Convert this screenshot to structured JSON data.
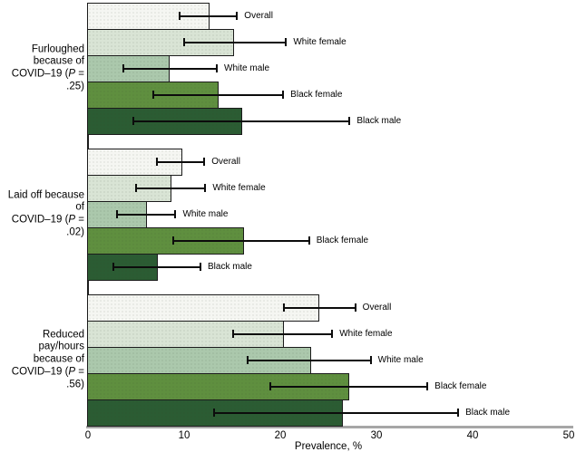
{
  "chart_data": {
    "type": "bar",
    "orientation": "horizontal",
    "title": "",
    "xlabel": "Prevalence, %",
    "ylabel": "",
    "xlim": [
      0,
      50
    ],
    "x_ticks": [
      0,
      10,
      20,
      30,
      40,
      50
    ],
    "grid": false,
    "legend": "none (categories labeled at error-bar ends)",
    "error_bars": "95% CI whiskers with end caps",
    "palette": {
      "Overall": "#f5f6f2",
      "White female": "#d9e4d5",
      "White male": "#abc8ac",
      "Black female": "#5f8f3f",
      "Black male": "#2b5c33"
    },
    "bar_border_color": "#1b1b1b",
    "axis_line_color": "#a6a6a6",
    "groups": [
      {
        "label_lines": [
          "Furloughed",
          "because of",
          "COVID–19 (P = .25)"
        ],
        "p_value": ".25",
        "bars": [
          {
            "category": "Overall",
            "value": 12.5,
            "ci_low": 9.5,
            "ci_high": 15.5
          },
          {
            "category": "White female",
            "value": 15.1,
            "ci_low": 10.0,
            "ci_high": 20.6
          },
          {
            "category": "White male",
            "value": 8.4,
            "ci_low": 3.7,
            "ci_high": 13.4
          },
          {
            "category": "Black female",
            "value": 13.5,
            "ci_low": 6.8,
            "ci_high": 20.3
          },
          {
            "category": "Black male",
            "value": 15.9,
            "ci_low": 4.7,
            "ci_high": 27.2
          }
        ]
      },
      {
        "label_lines": [
          "Laid off because of",
          "COVID–19 (P = .02)"
        ],
        "p_value": ".02",
        "bars": [
          {
            "category": "Overall",
            "value": 9.7,
            "ci_low": 7.2,
            "ci_high": 12.1
          },
          {
            "category": "White female",
            "value": 8.6,
            "ci_low": 5.0,
            "ci_high": 12.2
          },
          {
            "category": "White male",
            "value": 6.0,
            "ci_low": 3.0,
            "ci_high": 9.1
          },
          {
            "category": "Black female",
            "value": 16.1,
            "ci_low": 8.9,
            "ci_high": 23.0
          },
          {
            "category": "Black male",
            "value": 7.2,
            "ci_low": 2.6,
            "ci_high": 11.7
          }
        ]
      },
      {
        "label_lines": [
          "Reduced pay/hours",
          "because of",
          "COVID–19 (P = .56)"
        ],
        "p_value": ".56",
        "bars": [
          {
            "category": "Overall",
            "value": 24.0,
            "ci_low": 20.4,
            "ci_high": 27.8
          },
          {
            "category": "White female",
            "value": 20.3,
            "ci_low": 15.1,
            "ci_high": 25.4
          },
          {
            "category": "White male",
            "value": 23.1,
            "ci_low": 16.6,
            "ci_high": 29.4
          },
          {
            "category": "Black female",
            "value": 27.1,
            "ci_low": 19.0,
            "ci_high": 35.3
          },
          {
            "category": "Black male",
            "value": 26.4,
            "ci_low": 13.1,
            "ci_high": 38.5
          }
        ]
      }
    ]
  }
}
